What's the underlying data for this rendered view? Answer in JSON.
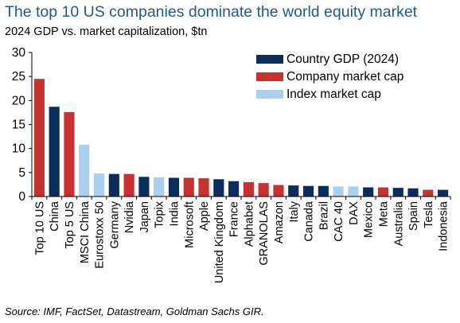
{
  "header": {
    "title": "The top 10 US companies dominate the world equity market",
    "subtitle": "2024 GDP vs. market capitalization, $tn"
  },
  "footer": {
    "source": "Source: IMF, FactSet, Datastream, Goldman Sachs GIR."
  },
  "colors": {
    "country_gdp": "#0b2d5b",
    "company_cap": "#c8312f",
    "index_cap": "#a9d0ef"
  },
  "chart_data": {
    "type": "bar",
    "title": "The top 10 US companies dominate the world equity market",
    "subtitle": "2024 GDP vs. market capitalization, $tn",
    "xlabel": "",
    "ylabel": "",
    "ylim": [
      0,
      30
    ],
    "yticks": [
      0,
      5,
      10,
      15,
      20,
      25,
      30
    ],
    "grid": false,
    "legend_position": "top-right",
    "legend": [
      {
        "key": "country",
        "label": "Country GDP (2024)"
      },
      {
        "key": "company",
        "label": "Company market cap"
      },
      {
        "key": "index",
        "label": "Index market cap"
      }
    ],
    "bars": [
      {
        "label": "Top 10 US",
        "value": 24.5,
        "group": "company"
      },
      {
        "label": "China",
        "value": 18.7,
        "group": "country"
      },
      {
        "label": "Top 5 US",
        "value": 17.6,
        "group": "company"
      },
      {
        "label": "MSCI China",
        "value": 10.8,
        "group": "index"
      },
      {
        "label": "Eurostoxx 50",
        "value": 4.8,
        "group": "index"
      },
      {
        "label": "Germany",
        "value": 4.7,
        "group": "country"
      },
      {
        "label": "Nvidia",
        "value": 4.7,
        "group": "company"
      },
      {
        "label": "Japan",
        "value": 4.1,
        "group": "country"
      },
      {
        "label": "Topix",
        "value": 4.0,
        "group": "index"
      },
      {
        "label": "India",
        "value": 3.9,
        "group": "country"
      },
      {
        "label": "Microsoft",
        "value": 3.9,
        "group": "company"
      },
      {
        "label": "Apple",
        "value": 3.8,
        "group": "company"
      },
      {
        "label": "United Kingdom",
        "value": 3.6,
        "group": "country"
      },
      {
        "label": "France",
        "value": 3.2,
        "group": "country"
      },
      {
        "label": "Alphabet",
        "value": 3.0,
        "group": "company"
      },
      {
        "label": "GRANOLAS",
        "value": 2.8,
        "group": "company"
      },
      {
        "label": "Amazon",
        "value": 2.4,
        "group": "company"
      },
      {
        "label": "Italy",
        "value": 2.3,
        "group": "country"
      },
      {
        "label": "Canada",
        "value": 2.2,
        "group": "country"
      },
      {
        "label": "Brazil",
        "value": 2.2,
        "group": "country"
      },
      {
        "label": "CAC 40",
        "value": 2.1,
        "group": "index"
      },
      {
        "label": "DAX",
        "value": 2.1,
        "group": "index"
      },
      {
        "label": "Mexico",
        "value": 1.9,
        "group": "country"
      },
      {
        "label": "Meta",
        "value": 1.9,
        "group": "company"
      },
      {
        "label": "Australia",
        "value": 1.8,
        "group": "country"
      },
      {
        "label": "Spain",
        "value": 1.7,
        "group": "country"
      },
      {
        "label": "Tesla",
        "value": 1.4,
        "group": "company"
      },
      {
        "label": "Indonesia",
        "value": 1.4,
        "group": "country"
      }
    ]
  }
}
